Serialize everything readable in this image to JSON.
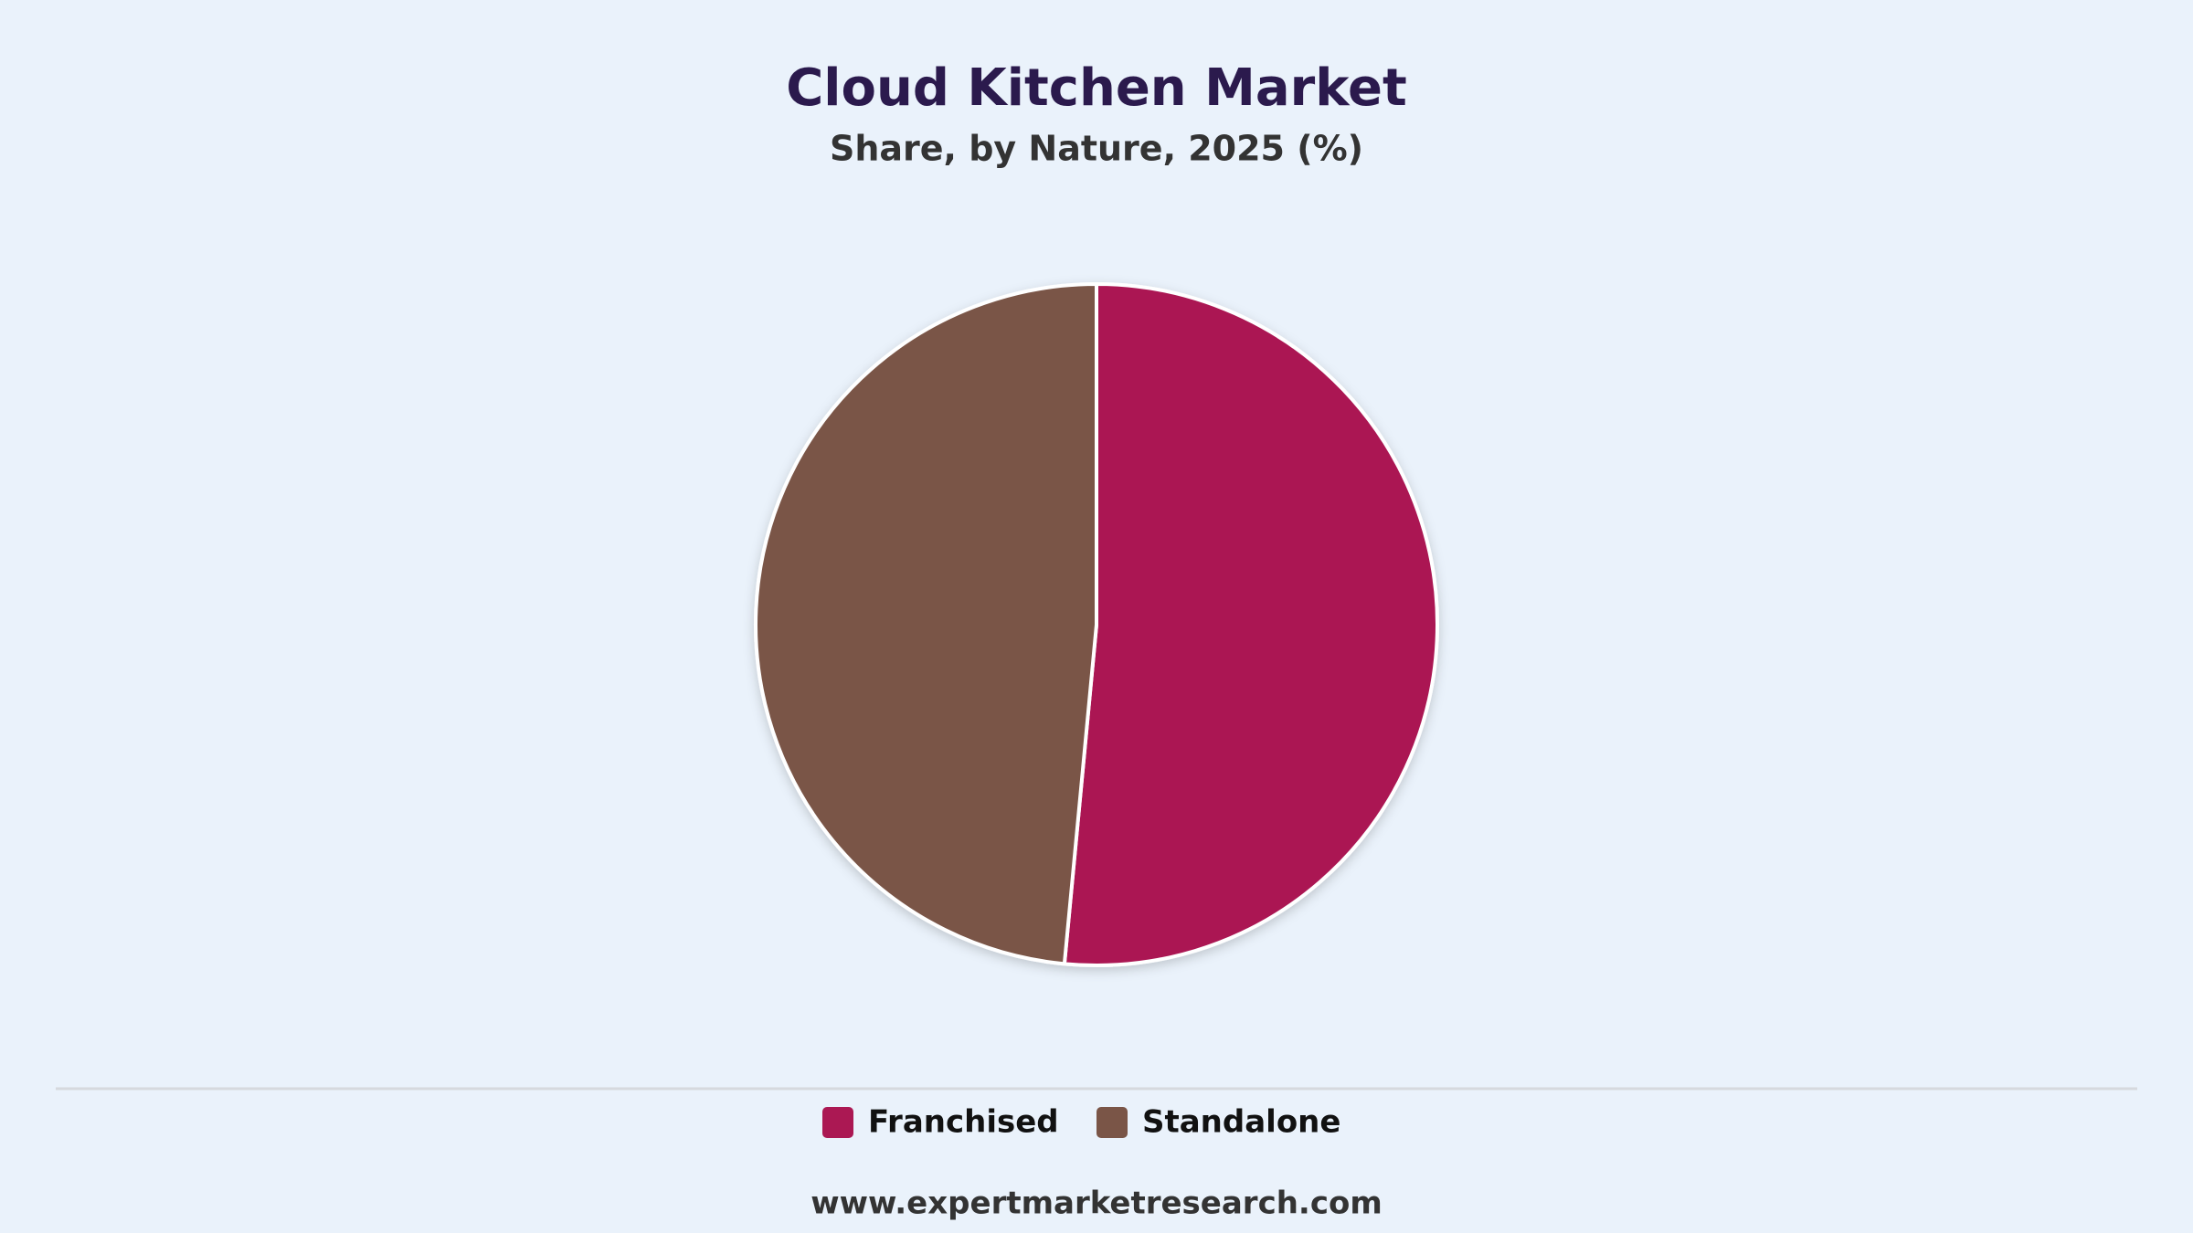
{
  "chart_data": {
    "type": "pie",
    "title": "Cloud Kitchen Market",
    "subtitle": "Share, by Nature, 2025 (%)",
    "categories": [
      "Franchised",
      "Standalone"
    ],
    "values": [
      51.5,
      48.5
    ],
    "colors": [
      "#ab1853",
      "#7a5547"
    ],
    "legend": "bottom"
  },
  "footer": "www.expertmarketresearch.com"
}
